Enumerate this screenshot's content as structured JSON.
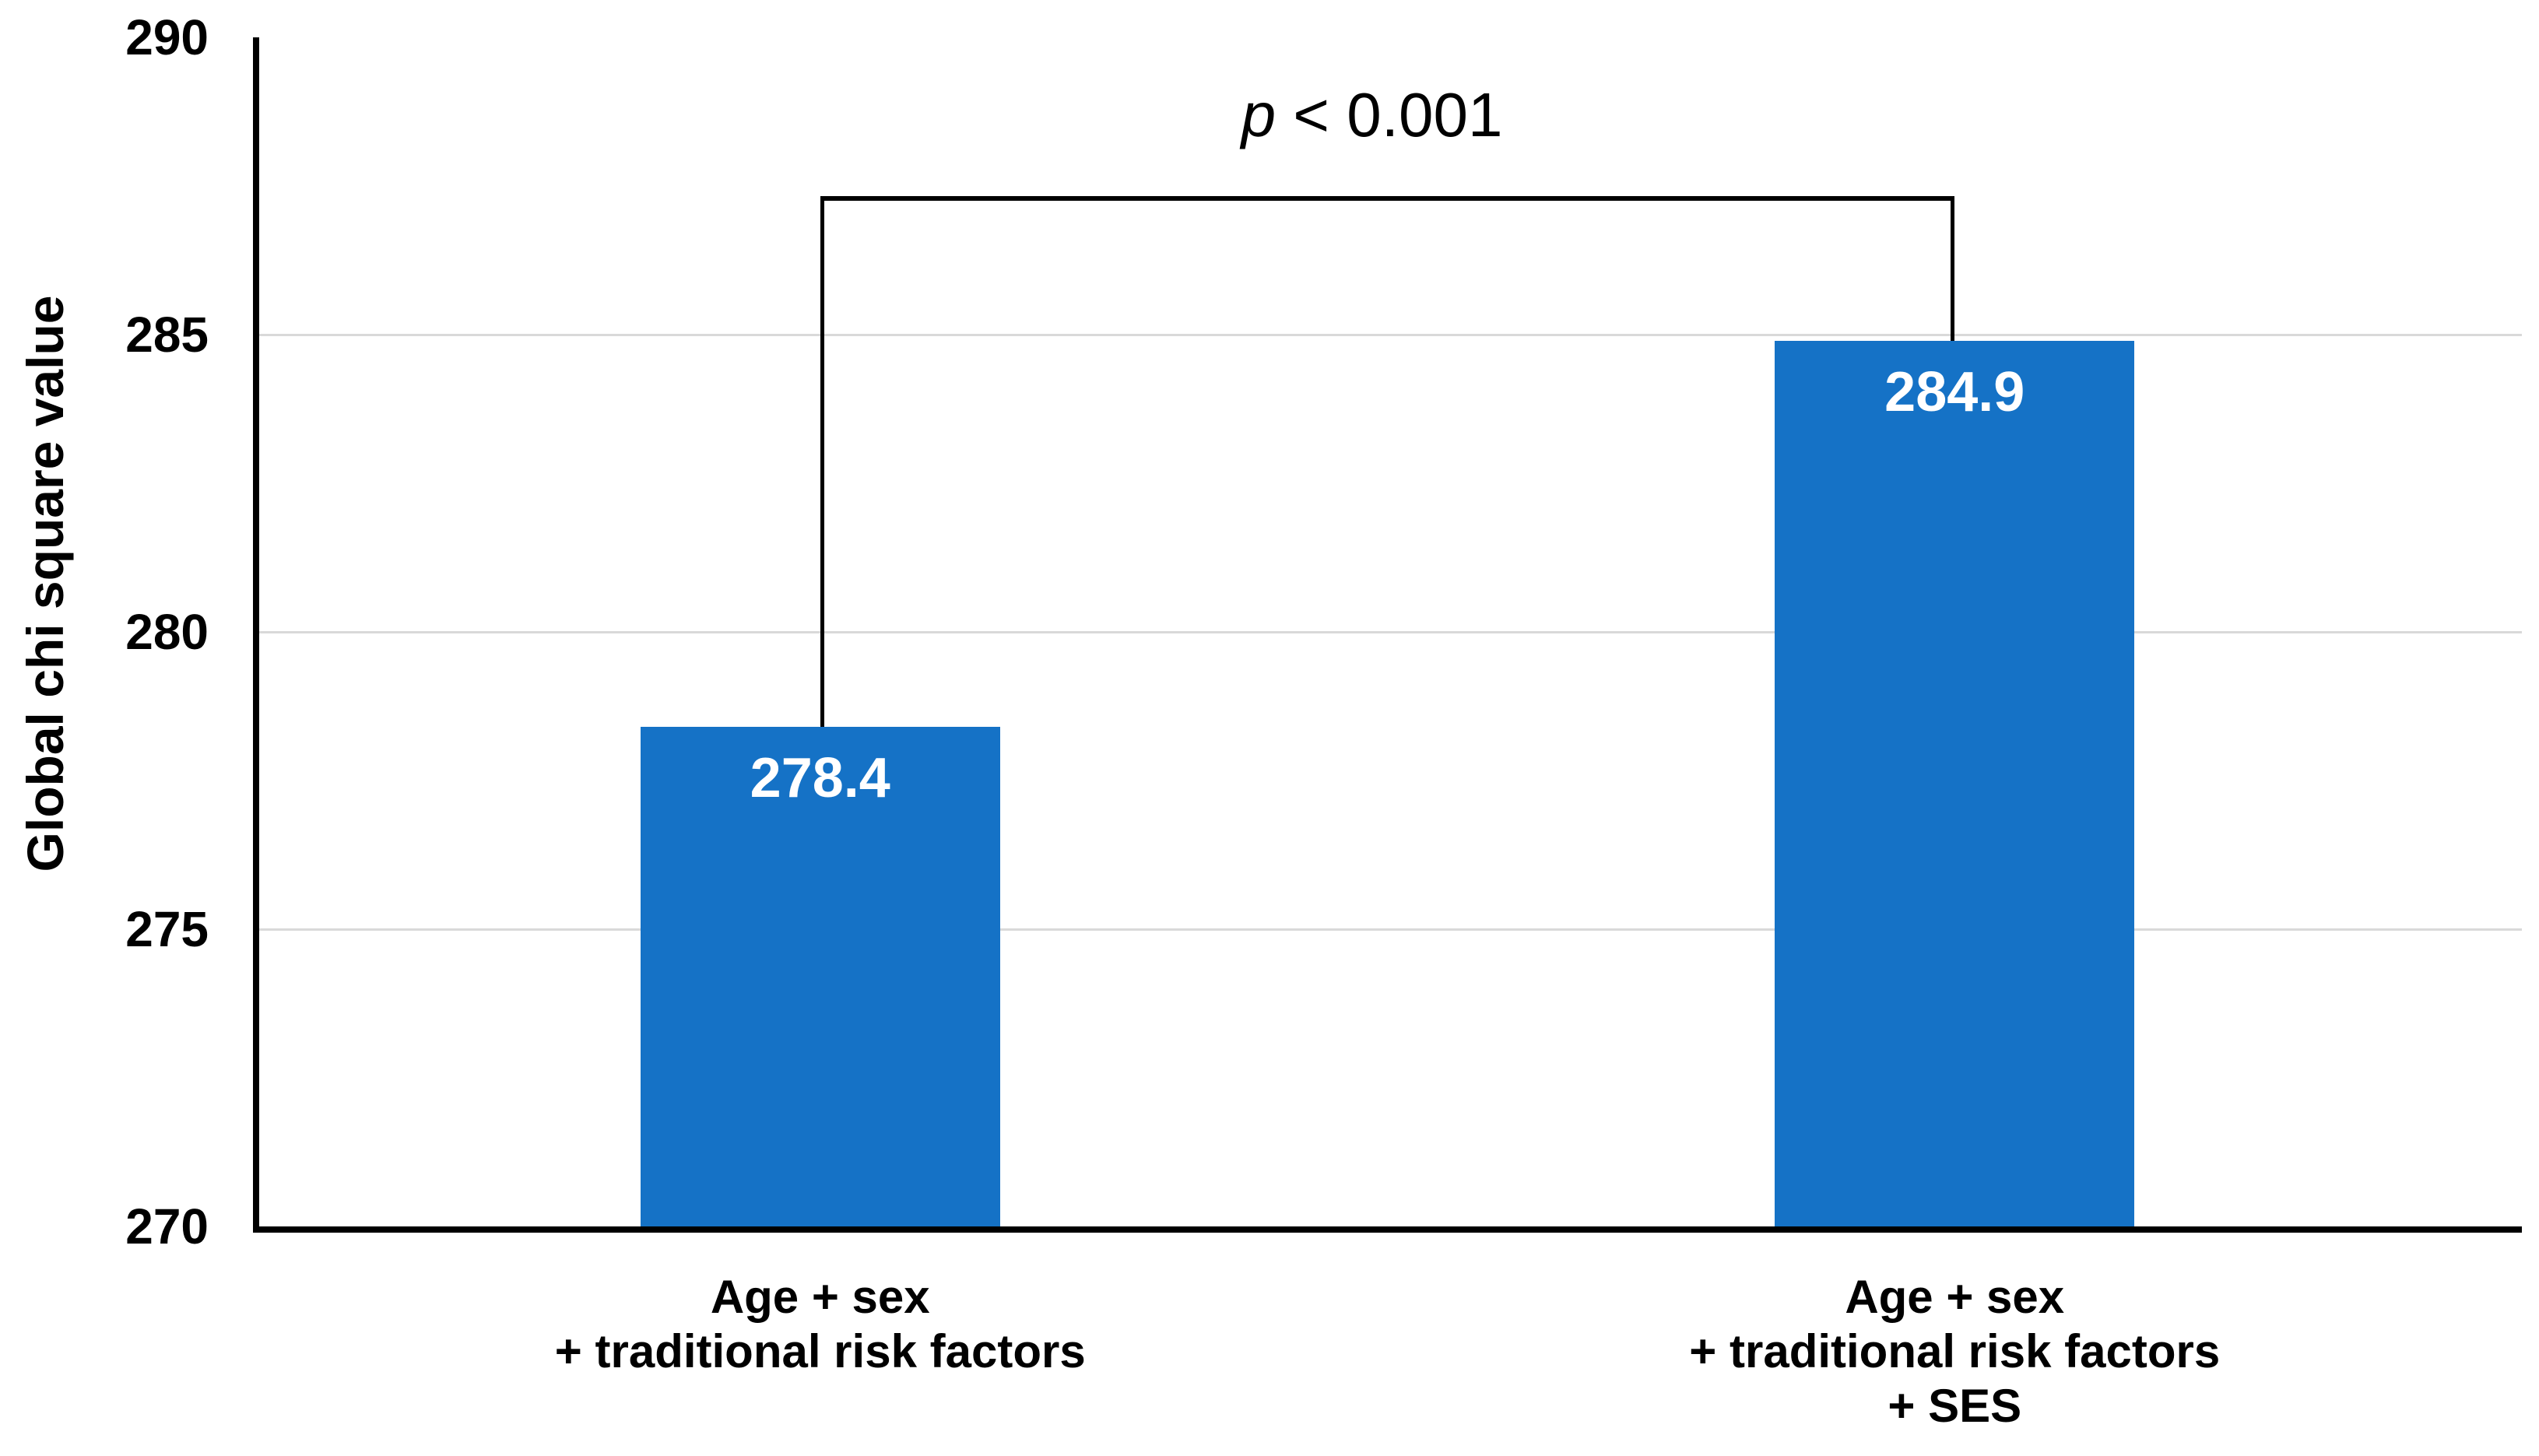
{
  "chart_data": {
    "type": "bar",
    "categories": [
      "Age + sex\n+ traditional risk factors",
      "Age + sex\n+ traditional risk factors\n+ SES"
    ],
    "values": [
      278.4,
      284.9
    ],
    "bar_labels": [
      "278.4",
      "284.9"
    ],
    "title": "",
    "xlabel": "",
    "ylabel": "Global chi square value",
    "ylim": [
      270,
      290
    ],
    "yticks": [
      270,
      275,
      280,
      285,
      290
    ],
    "gridline_ticks": [
      275,
      280,
      285
    ],
    "grid": "horizontal-light",
    "legend": "none",
    "colors": {
      "bar": "#1572C6",
      "bar_label": "#FFFFFF",
      "gridline": "#D9D9D9",
      "axis": "#000000",
      "text": "#000000"
    },
    "annotations": [
      {
        "type": "significance-bracket",
        "between": [
          0,
          1
        ],
        "var": "p",
        "rest": " < 0.001",
        "text": "p < 0.001"
      }
    ]
  }
}
